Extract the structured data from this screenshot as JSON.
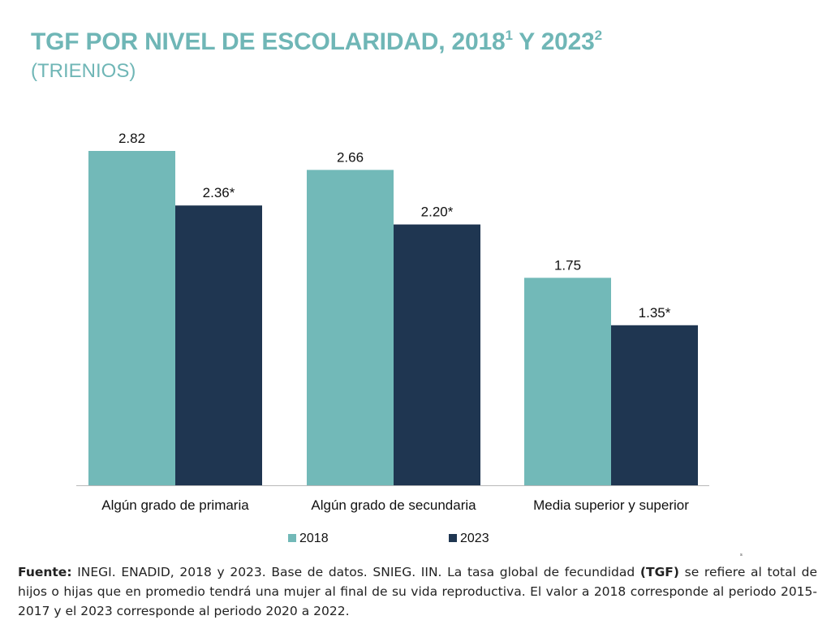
{
  "header": {
    "title_main": "TGF POR NIVEL DE ESCOLARIDAD, 2018",
    "title_sup1": "1",
    "title_mid": " Y 2023",
    "title_sup2": "2",
    "subtitle": "(TRIENIOS)"
  },
  "chart_data": {
    "type": "bar",
    "categories": [
      "Algún grado de primaria",
      "Algún grado de secundaria",
      "Media superior y superior"
    ],
    "series": [
      {
        "name": "2018",
        "color": "#72b9b8",
        "values": [
          2.82,
          2.66,
          1.75
        ],
        "labels": [
          "2.82",
          "2.66",
          "1.75"
        ]
      },
      {
        "name": "2023",
        "color": "#1f3651",
        "values": [
          2.36,
          2.2,
          1.35
        ],
        "labels": [
          "2.36*",
          "2.20*",
          "1.35*"
        ]
      }
    ],
    "ylim": [
      0,
      2.82
    ],
    "grid": false,
    "legend_position": "bottom"
  },
  "footer": {
    "source_label": "Fuente:",
    "text_1": " INEGI. ENADID, 2018 y 2023. Base de datos. SNIEG. IIN. La tasa global de fecundidad ",
    "tgf": "(TGF)",
    "text_2": " se refiere al total de hijos o hijas que en promedio tendrá una mujer al final de su vida reproductiva. El valor a 2018 corresponde al periodo 2015-2017 y el 2023 corresponde al periodo 2020 a 2022."
  }
}
